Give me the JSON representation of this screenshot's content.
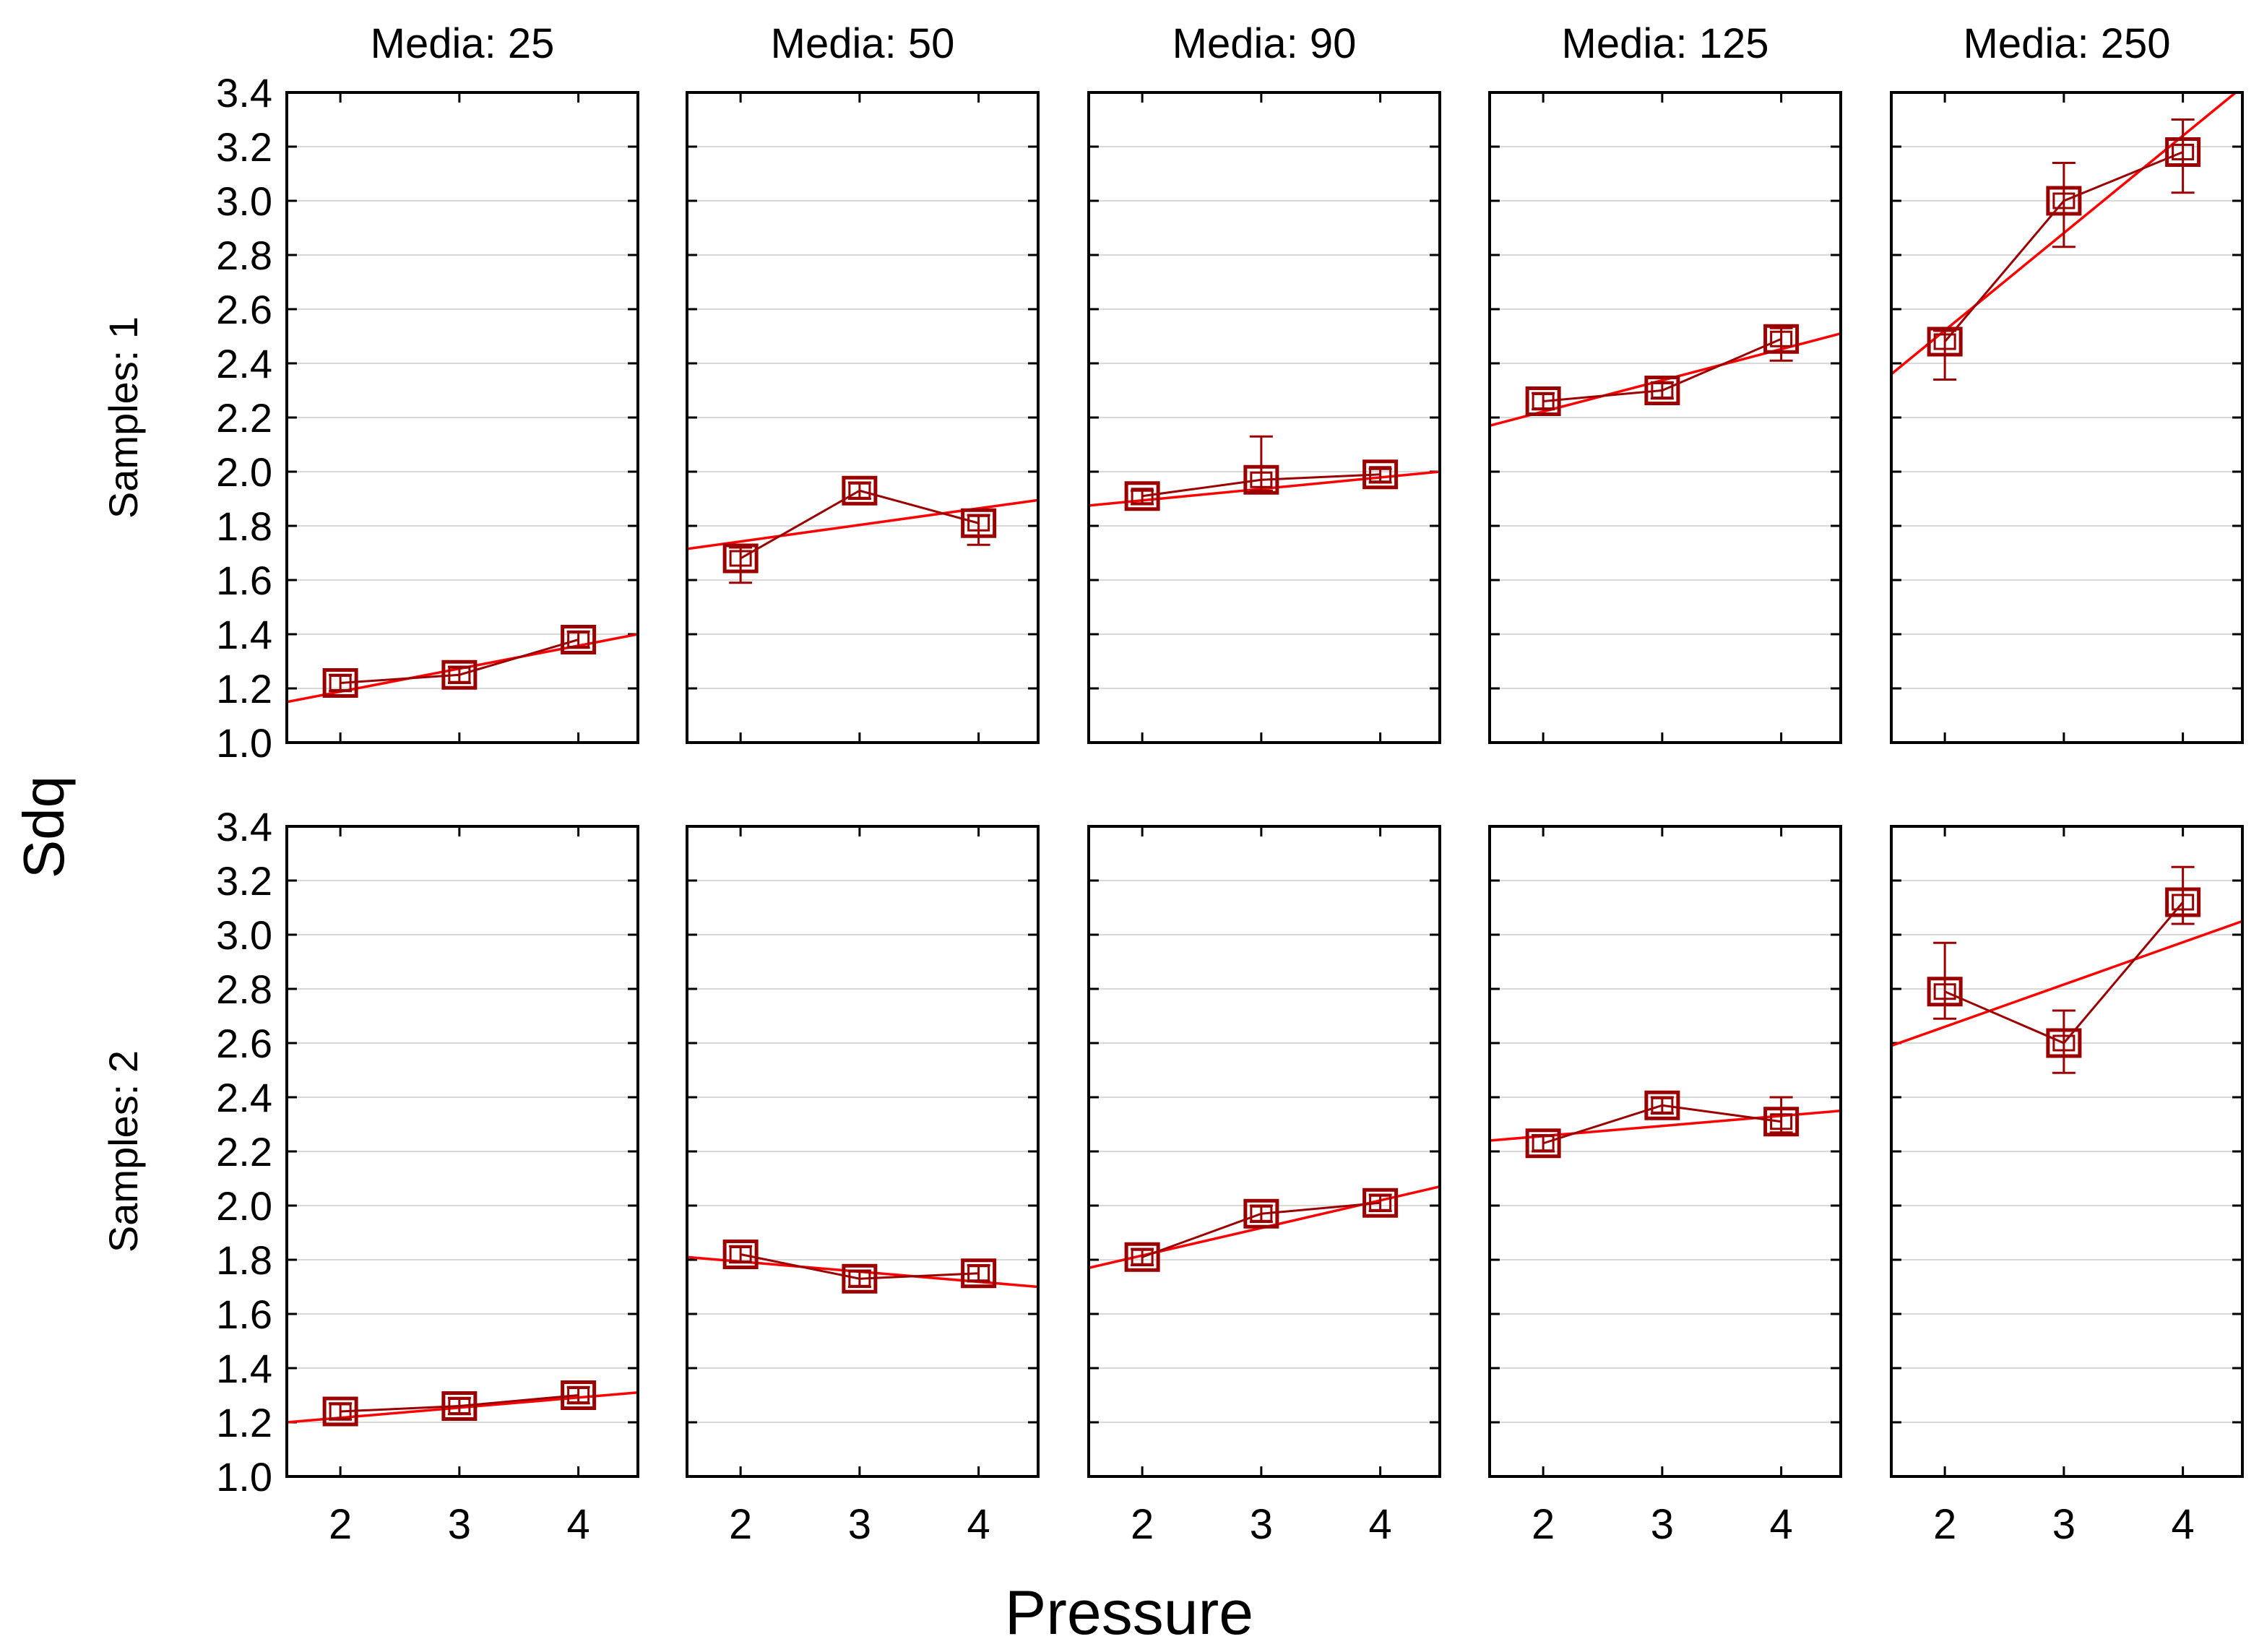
{
  "chart_data": {
    "type": "line",
    "ylabel": "Sdq",
    "xlabel": "Pressure",
    "ylim": [
      1.0,
      3.4
    ],
    "yticks": [
      "1.0",
      "1.2",
      "1.4",
      "1.6",
      "1.8",
      "2.0",
      "2.2",
      "2.4",
      "2.6",
      "2.8",
      "3.0",
      "3.2",
      "3.4"
    ],
    "xlim": [
      1.55,
      4.5
    ],
    "x": [
      2,
      3,
      4
    ],
    "xtick_labels": [
      "2",
      "3",
      "4"
    ],
    "grid": "horizontal",
    "colors": {
      "points": "#9b0000",
      "trend": "#ff0000",
      "frame": "#000000",
      "grid": "#d9d9d9"
    },
    "columns": [
      {
        "label": "Media: 25"
      },
      {
        "label": "Media: 50"
      },
      {
        "label": "Media: 90"
      },
      {
        "label": "Media: 125"
      },
      {
        "label": "Media: 250"
      }
    ],
    "rows": [
      {
        "label": "Samples: 1",
        "panels": [
          {
            "means": [
              1.22,
              1.25,
              1.38
            ],
            "err_low": [
              1.19,
              1.22,
              1.35
            ],
            "err_high": [
              1.25,
              1.28,
              1.41
            ],
            "trend": [
              1.15,
              1.4
            ]
          },
          {
            "means": [
              1.68,
              1.93,
              1.81
            ],
            "err_low": [
              1.59,
              1.9,
              1.73
            ],
            "err_high": [
              1.72,
              1.96,
              1.84
            ],
            "trend": [
              1.715,
              1.895
            ]
          },
          {
            "means": [
              1.91,
              1.97,
              1.99
            ],
            "err_low": [
              1.88,
              1.93,
              1.96
            ],
            "err_high": [
              1.93,
              2.13,
              2.01
            ],
            "trend": [
              1.875,
              2.0
            ]
          },
          {
            "means": [
              2.26,
              2.3,
              2.49
            ],
            "err_low": [
              2.23,
              2.27,
              2.41
            ],
            "err_high": [
              2.29,
              2.33,
              2.53
            ],
            "trend": [
              2.17,
              2.51
            ]
          },
          {
            "means": [
              2.48,
              3.0,
              3.18
            ],
            "err_low": [
              2.34,
              2.83,
              3.03
            ],
            "err_high": [
              2.52,
              3.14,
              3.3
            ],
            "trend": [
              2.36,
              3.42
            ]
          }
        ]
      },
      {
        "label": "Samples: 2",
        "panels": [
          {
            "means": [
              1.24,
              1.26,
              1.3
            ],
            "err_low": [
              1.21,
              1.23,
              1.27
            ],
            "err_high": [
              1.27,
              1.29,
              1.33
            ],
            "trend": [
              1.2,
              1.31
            ]
          },
          {
            "means": [
              1.82,
              1.73,
              1.75
            ],
            "err_low": [
              1.79,
              1.7,
              1.72
            ],
            "err_high": [
              1.85,
              1.76,
              1.78
            ],
            "trend": [
              1.81,
              1.7
            ]
          },
          {
            "means": [
              1.81,
              1.97,
              2.01
            ],
            "err_low": [
              1.78,
              1.94,
              1.98
            ],
            "err_high": [
              1.84,
              2.0,
              2.04
            ],
            "trend": [
              1.77,
              2.07
            ]
          },
          {
            "means": [
              2.23,
              2.37,
              2.31
            ],
            "err_low": [
              2.2,
              2.34,
              2.27
            ],
            "err_high": [
              2.26,
              2.4,
              2.4
            ],
            "trend": [
              2.24,
              2.35
            ]
          },
          {
            "means": [
              2.79,
              2.6,
              3.12
            ],
            "err_low": [
              2.69,
              2.49,
              3.04
            ],
            "err_high": [
              2.97,
              2.72,
              3.25
            ],
            "trend": [
              2.59,
              3.05
            ]
          }
        ]
      }
    ]
  }
}
